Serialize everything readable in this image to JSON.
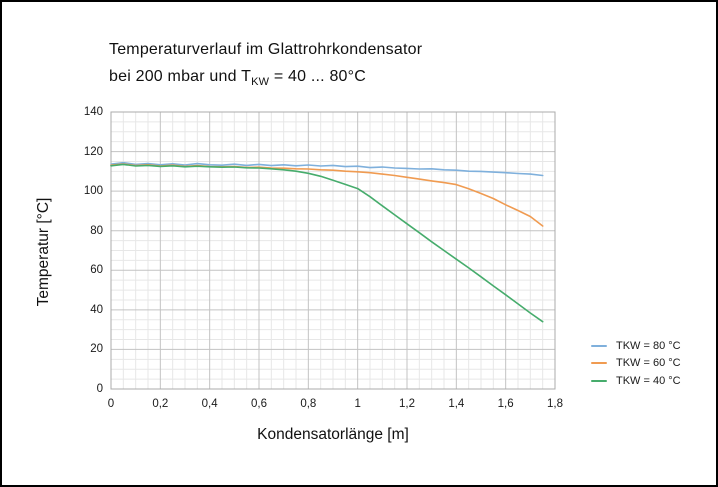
{
  "figure": {
    "title_line1": "Temperaturverlauf im Glattrohrkondensator",
    "title_line2_prefix": "bei 200 mbar und T",
    "title_line2_sub": "KW",
    "title_line2_suffix": " = 40 ... 80°C"
  },
  "chart_data": {
    "type": "line",
    "title": "Temperaturverlauf im Glattrohrkondensator bei 200 mbar und TKW = 40 ... 80°C",
    "xlabel": "Kondensatorlänge [m]",
    "ylabel": "Temperatur [°C]",
    "xlim": [
      0,
      1.8
    ],
    "ylim": [
      0,
      140
    ],
    "x_major_step": 0.2,
    "x_minor_step": 0.05,
    "y_major_step": 20,
    "y_minor_step": 5,
    "grid": true,
    "legend_position": "right-bottom",
    "x_tick_labels": [
      "0",
      "0,2",
      "0,4",
      "0,6",
      "0,8",
      "1",
      "1,2",
      "1,4",
      "1,6",
      "1,8"
    ],
    "y_tick_labels": [
      "0",
      "20",
      "40",
      "60",
      "80",
      "100",
      "120",
      "140"
    ],
    "x": [
      0.0,
      0.05,
      0.1,
      0.15,
      0.2,
      0.25,
      0.3,
      0.35,
      0.4,
      0.45,
      0.5,
      0.55,
      0.6,
      0.65,
      0.7,
      0.75,
      0.8,
      0.85,
      0.9,
      0.95,
      1.0,
      1.05,
      1.1,
      1.15,
      1.2,
      1.25,
      1.3,
      1.35,
      1.4,
      1.45,
      1.5,
      1.55,
      1.6,
      1.65,
      1.7,
      1.75
    ],
    "series": [
      {
        "name": "TKW = 80 °C",
        "color": "#7FB0DC",
        "values": [
          113.6,
          114.4,
          113.5,
          113.9,
          113.3,
          113.8,
          113.2,
          113.9,
          113.3,
          113.1,
          113.6,
          113.0,
          113.5,
          112.9,
          113.3,
          112.8,
          113.2,
          112.7,
          113.0,
          112.4,
          112.6,
          111.9,
          112.2,
          111.7,
          111.5,
          111.2,
          111.3,
          110.8,
          110.6,
          110.1,
          110.0,
          109.6,
          109.3,
          108.9,
          108.6,
          107.9
        ]
      },
      {
        "name": "TKW = 60 °C",
        "color": "#F09B51",
        "values": [
          113.1,
          113.7,
          112.9,
          113.3,
          112.7,
          113.1,
          112.5,
          112.9,
          112.4,
          112.3,
          112.4,
          112.0,
          112.1,
          111.7,
          111.6,
          111.3,
          111.2,
          110.8,
          110.6,
          110.1,
          109.8,
          109.3,
          108.6,
          107.9,
          107.0,
          106.1,
          105.2,
          104.3,
          103.3,
          101.2,
          98.8,
          96.3,
          93.1,
          90.2,
          87.2,
          82.4
        ]
      },
      {
        "name": "TKW = 40 °C",
        "color": "#46AC6C",
        "values": [
          112.8,
          113.5,
          112.7,
          113.0,
          112.5,
          112.8,
          112.3,
          112.6,
          112.3,
          112.1,
          112.2,
          111.8,
          111.7,
          111.3,
          110.8,
          110.1,
          109.0,
          107.5,
          105.5,
          103.4,
          101.3,
          97.2,
          92.6,
          88.0,
          83.5,
          79.0,
          74.4,
          70.0,
          65.6,
          61.2,
          56.7,
          52.1,
          47.6,
          43.0,
          38.4,
          34.0
        ]
      }
    ]
  },
  "colors": {
    "grid_minor": "#e7e7e7",
    "grid_major": "#c3c3c3",
    "plot_border": "#ababab",
    "text": "#1a1a1a"
  }
}
